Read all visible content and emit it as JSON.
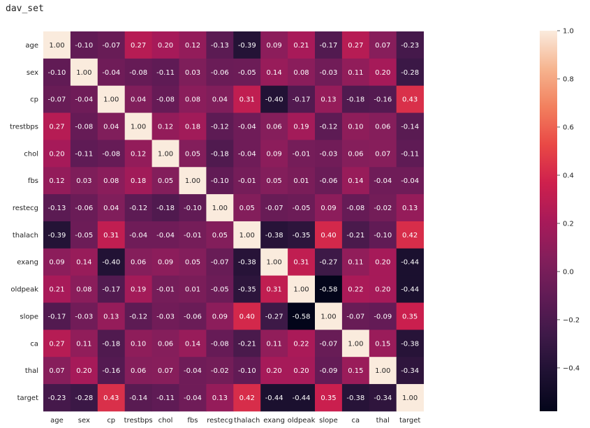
{
  "notebook": {
    "cell_title": "dav_set"
  },
  "chart_data": {
    "type": "heatmap",
    "labels": [
      "age",
      "sex",
      "cp",
      "trestbps",
      "chol",
      "fbs",
      "restecg",
      "thalach",
      "exang",
      "oldpeak",
      "slope",
      "ca",
      "thal",
      "target"
    ],
    "matrix": [
      [
        1.0,
        -0.1,
        -0.07,
        0.27,
        0.2,
        0.12,
        -0.13,
        -0.39,
        0.09,
        0.21,
        -0.17,
        0.27,
        0.07,
        -0.23
      ],
      [
        -0.1,
        1.0,
        -0.04,
        -0.08,
        -0.11,
        0.03,
        -0.06,
        -0.05,
        0.14,
        0.08,
        -0.03,
        0.11,
        0.2,
        -0.28
      ],
      [
        -0.07,
        -0.04,
        1.0,
        0.04,
        -0.08,
        0.08,
        0.04,
        0.31,
        -0.4,
        -0.17,
        0.13,
        -0.18,
        -0.16,
        0.43
      ],
      [
        0.27,
        -0.08,
        0.04,
        1.0,
        0.12,
        0.18,
        -0.12,
        -0.04,
        0.06,
        0.19,
        -0.12,
        0.1,
        0.06,
        -0.14
      ],
      [
        0.2,
        -0.11,
        -0.08,
        0.12,
        1.0,
        0.05,
        -0.18,
        -0.04,
        0.09,
        -0.01,
        -0.03,
        0.06,
        0.07,
        -0.11
      ],
      [
        0.12,
        0.03,
        0.08,
        0.18,
        0.05,
        1.0,
        -0.1,
        -0.01,
        0.05,
        0.01,
        -0.06,
        0.14,
        -0.04,
        -0.04
      ],
      [
        -0.13,
        -0.06,
        0.04,
        -0.12,
        -0.18,
        -0.1,
        1.0,
        0.05,
        -0.07,
        -0.05,
        0.09,
        -0.08,
        -0.02,
        0.13
      ],
      [
        -0.39,
        -0.05,
        0.31,
        -0.04,
        -0.04,
        -0.01,
        0.05,
        1.0,
        -0.38,
        -0.35,
        0.4,
        -0.21,
        -0.1,
        0.42
      ],
      [
        0.09,
        0.14,
        -0.4,
        0.06,
        0.09,
        0.05,
        -0.07,
        -0.38,
        1.0,
        0.31,
        -0.27,
        0.11,
        0.2,
        -0.44
      ],
      [
        0.21,
        0.08,
        -0.17,
        0.19,
        -0.01,
        0.01,
        -0.05,
        -0.35,
        0.31,
        1.0,
        -0.58,
        0.22,
        0.2,
        -0.44
      ],
      [
        -0.17,
        -0.03,
        0.13,
        -0.12,
        -0.03,
        -0.06,
        0.09,
        0.4,
        -0.27,
        -0.58,
        1.0,
        -0.07,
        -0.09,
        0.35
      ],
      [
        0.27,
        0.11,
        -0.18,
        0.1,
        0.06,
        0.14,
        -0.08,
        -0.21,
        0.11,
        0.22,
        -0.07,
        1.0,
        0.15,
        -0.38
      ],
      [
        0.07,
        0.2,
        -0.16,
        0.06,
        0.07,
        -0.04,
        -0.02,
        -0.1,
        0.2,
        0.2,
        -0.09,
        0.15,
        1.0,
        -0.34
      ],
      [
        -0.23,
        -0.28,
        0.43,
        -0.14,
        -0.11,
        -0.04,
        0.13,
        0.42,
        -0.44,
        -0.44,
        0.35,
        -0.38,
        -0.34,
        1.0
      ]
    ],
    "colorbar": {
      "range": [
        -0.58,
        1.0
      ],
      "ticks": [
        1.0,
        0.8,
        0.6,
        0.4,
        0.2,
        0.0,
        -0.2,
        -0.4
      ],
      "tick_labels": [
        "1.0",
        "0.8",
        "0.6",
        "0.4",
        "0.2",
        "0.0",
        "−0.2",
        "−0.4"
      ],
      "colormap": "rocket"
    },
    "annotation_format": "0.00"
  }
}
